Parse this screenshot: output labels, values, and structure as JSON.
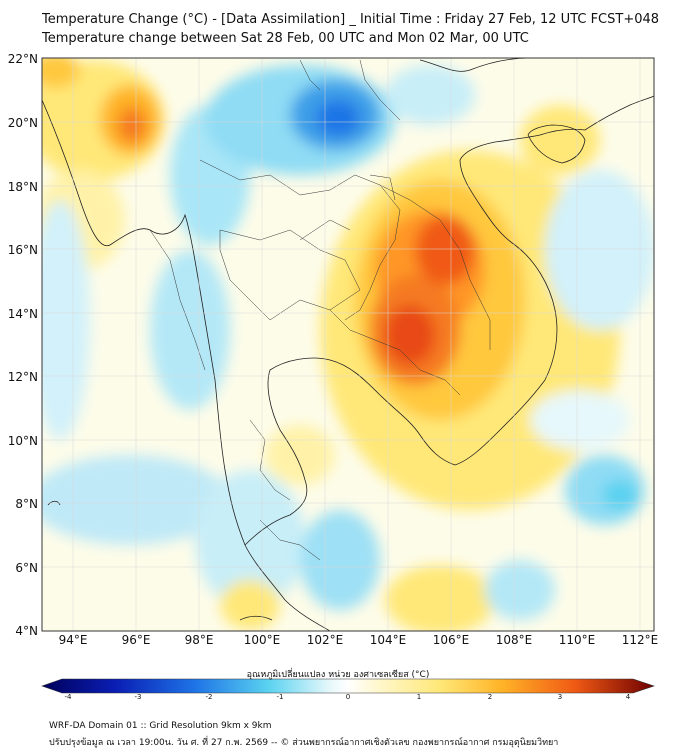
{
  "header": {
    "title_line1": "Temperature Change (°C) - [Data Assimilation] _ Initial Time : Friday 27 Feb, 12 UTC FCST+048",
    "title_line2": "Temperature change between Sat 28 Feb, 00 UTC and Mon 02 Mar, 00 UTC"
  },
  "map": {
    "lat_labels": [
      "22°N",
      "20°N",
      "18°N",
      "16°N",
      "14°N",
      "12°N",
      "10°N",
      "8°N",
      "6°N",
      "4°N"
    ],
    "lon_labels": [
      "94°E",
      "96°E",
      "98°E",
      "100°E",
      "102°E",
      "104°E",
      "106°E",
      "108°E",
      "110°E",
      "112°E"
    ]
  },
  "colorbar": {
    "label": "อุณหภูมิเปลี่ยนแปลง หน่วย องศาเซลเซียส (°C)",
    "ticks": [
      "-4",
      "-3",
      "-2",
      "-1",
      "0",
      "1",
      "2",
      "3",
      "4"
    ],
    "colors": {
      "min": "#00005a",
      "cold": "#1e74e6",
      "cool": "#5ad2f0",
      "neutral": "#ffffff",
      "warm": "#ffe878",
      "hot": "#f05a14",
      "max": "#6e0000"
    }
  },
  "footer": {
    "line1": "WRF-DA Domain 01 :: Grid Resolution 9km x 9km",
    "line2": "ปรับปรุงข้อมูล ณ เวลา 19:00น. วัน ศ. ที่ 27 ก.พ. 2569 -- © ส่วนพยากรณ์อากาศเชิงตัวเลข กองพยากรณ์อากาศ กรมอุตุนิยมวิทยา"
  }
}
